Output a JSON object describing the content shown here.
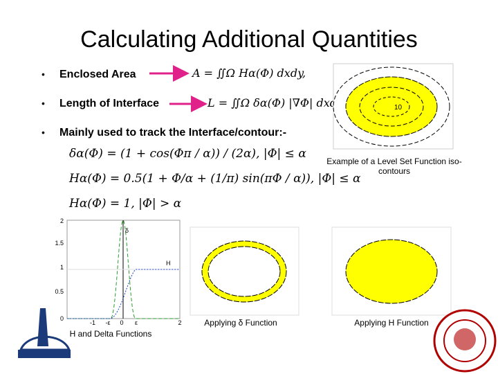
{
  "title": "Calculating Additional Quantities",
  "bullets": [
    {
      "text": "Enclosed Area",
      "formula": "A = ∬Ω Hα(Φ) dxdy,"
    },
    {
      "text": "Length of Interface",
      "formula": "L = ∬Ω δα(Φ) |∇Φ| dxdy,"
    },
    {
      "text": "Mainly used to track the Interface/contour:-"
    }
  ],
  "equations": [
    "δα(Φ) = (1 + cos(Φπ / α)) / (2α), |Φ| ≤ α",
    "Hα(Φ) = 0.5(1 + Φ/α + (1/π) sin(πΦ / α)), |Φ| ≤ α",
    "Hα(Φ) = 1, |Φ| > α"
  ],
  "figures": [
    {
      "caption": "Example of a Level Set Function iso-contours",
      "contour_label": "10"
    },
    {
      "caption": "H and Delta Functions",
      "y_labels": [
        "2",
        "1.5",
        "1",
        "0.5",
        "0"
      ],
      "x_labels": [
        "-1",
        "-ε",
        "0",
        "ε",
        "2"
      ],
      "curve_labels": [
        "δ",
        "H"
      ]
    },
    {
      "caption": "Applying δ Function"
    },
    {
      "caption": "Applying H  Function"
    }
  ]
}
